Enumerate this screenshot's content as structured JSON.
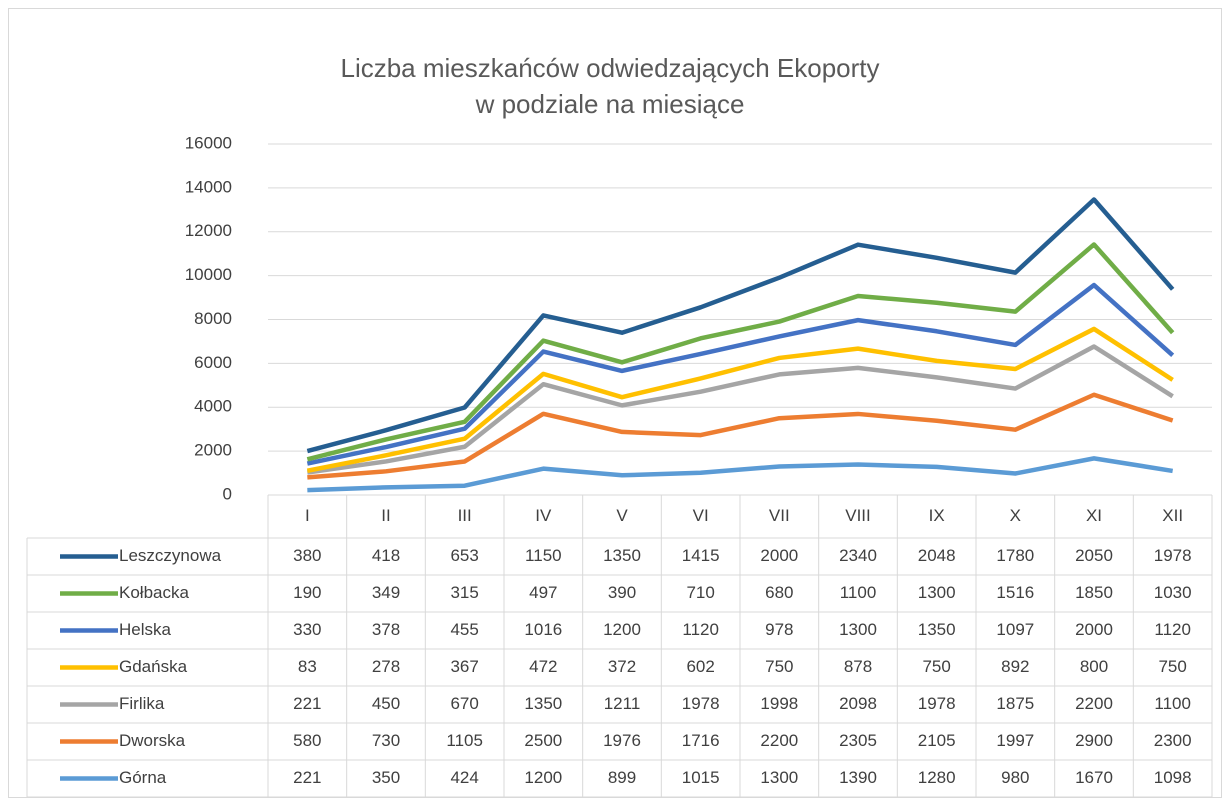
{
  "chart_data": {
    "type": "stacked_line",
    "title": [
      "Liczba mieszkańców odwiedzających Ekoporty",
      "w podziale na miesiące"
    ],
    "categories": [
      "I",
      "II",
      "III",
      "IV",
      "V",
      "VI",
      "VII",
      "VIII",
      "IX",
      "X",
      "XI",
      "XII"
    ],
    "series": [
      {
        "name": "Leszczynowa",
        "color": "#255e91",
        "values": [
          380,
          418,
          653,
          1150,
          1350,
          1415,
          2000,
          2340,
          2048,
          1780,
          2050,
          1978
        ]
      },
      {
        "name": "Kołbacka",
        "color": "#70ad47",
        "values": [
          190,
          349,
          315,
          497,
          390,
          710,
          680,
          1100,
          1300,
          1516,
          1850,
          1030
        ]
      },
      {
        "name": "Helska",
        "color": "#4472c4",
        "values": [
          330,
          378,
          455,
          1016,
          1200,
          1120,
          978,
          1300,
          1350,
          1097,
          2000,
          1120
        ]
      },
      {
        "name": "Gdańska",
        "color": "#ffc000",
        "values": [
          83,
          278,
          367,
          472,
          372,
          602,
          750,
          878,
          750,
          892,
          800,
          750
        ]
      },
      {
        "name": "Firlika",
        "color": "#a5a5a5",
        "values": [
          221,
          450,
          670,
          1350,
          1211,
          1978,
          1998,
          2098,
          1978,
          1875,
          2200,
          1100
        ]
      },
      {
        "name": "Dworska",
        "color": "#ed7d31",
        "values": [
          580,
          730,
          1105,
          2500,
          1976,
          1716,
          2200,
          2305,
          2105,
          1997,
          2900,
          2300
        ]
      },
      {
        "name": "Górna",
        "color": "#5b9bd5",
        "values": [
          221,
          350,
          424,
          1200,
          899,
          1015,
          1300,
          1390,
          1280,
          980,
          1670,
          1098
        ]
      }
    ],
    "ylim": [
      0,
      16000
    ],
    "yticks": [
      0,
      2000,
      4000,
      6000,
      8000,
      10000,
      12000,
      14000,
      16000
    ],
    "grid": true,
    "data_table": true
  }
}
